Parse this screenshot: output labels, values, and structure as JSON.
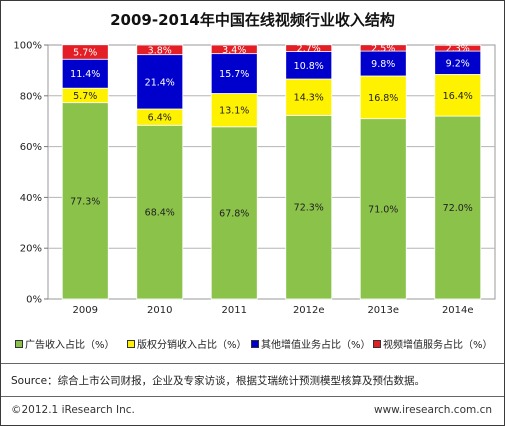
{
  "chart_data": {
    "type": "bar",
    "stacked": true,
    "title": "2009-2014年中国在线视频行业收入结构",
    "categories": [
      "2009",
      "2010",
      "2011",
      "2012e",
      "2013e",
      "2014e"
    ],
    "ylim": [
      0,
      100
    ],
    "ytick_labels": [
      "0%",
      "20%",
      "40%",
      "60%",
      "80%",
      "100%"
    ],
    "grid": true,
    "legend_position": "bottom",
    "series": [
      {
        "name": "广告收入占比（%）",
        "color": "#8BC34A",
        "values": [
          77.3,
          68.4,
          67.8,
          72.3,
          71.0,
          72.0
        ],
        "labels": [
          "77.3%",
          "68.4%",
          "67.8%",
          "72.3%",
          "71.0%",
          "72.0%"
        ]
      },
      {
        "name": "版权分销收入占比（%）",
        "color": "#FFF200",
        "values": [
          5.7,
          6.4,
          13.1,
          14.3,
          16.8,
          16.4
        ],
        "labels": [
          "5.7%",
          "6.4%",
          "13.1%",
          "14.3%",
          "16.8%",
          "16.4%"
        ]
      },
      {
        "name": "其他增值业务占比（%）",
        "color": "#0000CC",
        "values": [
          11.4,
          21.4,
          15.7,
          10.8,
          9.8,
          9.2
        ],
        "labels": [
          "11.4%",
          "21.4%",
          "15.7%",
          "10.8%",
          "9.8%",
          "9.2%"
        ]
      },
      {
        "name": "视频增值服务占比（%）",
        "color": "#E31E24",
        "values": [
          5.7,
          3.8,
          3.4,
          2.7,
          2.5,
          2.3
        ],
        "labels": [
          "5.7%",
          "3.8%",
          "3.4%",
          "2.7%",
          "2.5%",
          "2.3%"
        ]
      }
    ]
  },
  "source": "Source：综合上市公司财报，企业及专家访谈，根据艾瑞统计预测模型核算及预估数据。",
  "footer": {
    "copyright": "©2012.1 iResearch Inc.",
    "website": "www.iresearch.com.cn"
  }
}
